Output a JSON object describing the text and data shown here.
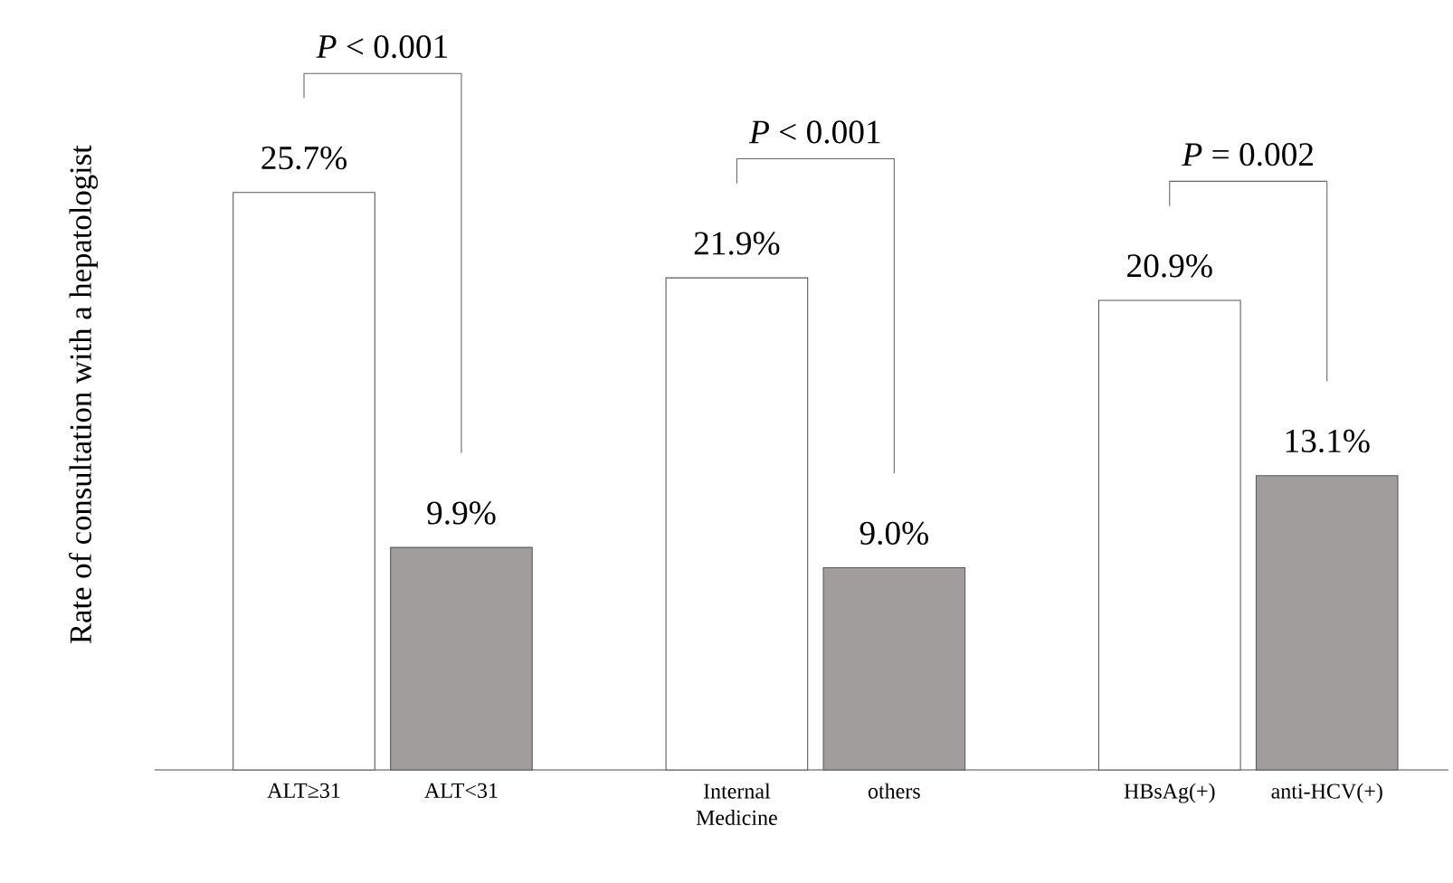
{
  "chart_data": {
    "type": "bar",
    "ylabel": "Rate of consultation with a hepatologist",
    "categories": [
      "ALT≥31",
      "ALT<31",
      "Internal Medicine",
      "others",
      "HBsAg(+)",
      "anti-HCV(+)"
    ],
    "values": [
      25.7,
      9.9,
      21.9,
      9.0,
      20.9,
      13.1
    ],
    "value_labels": [
      "25.7%",
      "9.9%",
      "21.9%",
      "9.0%",
      "20.9%",
      "13.1%"
    ],
    "colors": [
      "#ffffff",
      "#a19d9d",
      "#ffffff",
      "#a19d9d",
      "#ffffff",
      "#a19d9d"
    ],
    "annotations": [
      "*P* < 0.001",
      "*P* < 0.001",
      "*P* = 0.002"
    ]
  }
}
